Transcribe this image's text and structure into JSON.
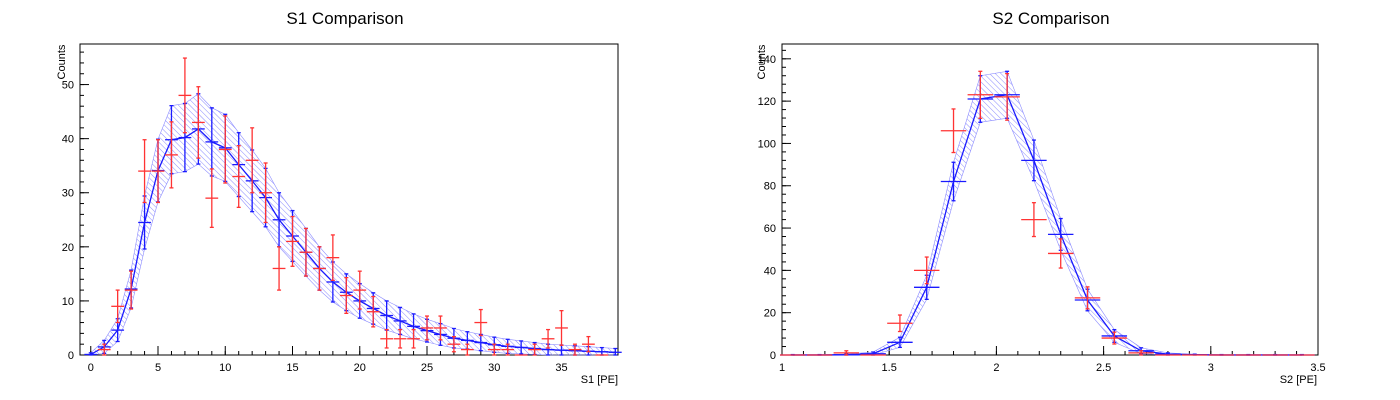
{
  "colors": {
    "data": "#ff3333",
    "model": "#1a1aff",
    "band": "#8c8cff",
    "frame": "#000000"
  },
  "chart_data": [
    {
      "type": "line",
      "title": "S1 Comparison",
      "xlabel": "S1 [PE]",
      "ylabel": "Counts",
      "xlim": [
        -0.8,
        39.2
      ],
      "ylim": [
        0,
        57.5
      ],
      "xticks": [
        0,
        5,
        10,
        15,
        20,
        25,
        30,
        35
      ],
      "yticks": [
        0,
        10,
        20,
        30,
        40,
        50
      ],
      "grid": false,
      "series": [
        {
          "role": "data",
          "x": [
            1,
            2,
            3,
            4,
            5,
            6,
            7,
            8,
            9,
            10,
            11,
            12,
            13,
            14,
            15,
            16,
            17,
            18,
            19,
            20,
            21,
            22,
            23,
            24,
            25,
            26,
            27,
            28,
            29,
            30,
            31,
            32,
            33,
            34,
            35,
            36,
            37,
            38
          ],
          "y": [
            1,
            9,
            12,
            34,
            34,
            37,
            48,
            43,
            29,
            38,
            33,
            36,
            30,
            16,
            21,
            19,
            16,
            18,
            11,
            12,
            8,
            3,
            3,
            3,
            5,
            5,
            2,
            1,
            6,
            1,
            1,
            0,
            1,
            3,
            5,
            1,
            2,
            0
          ],
          "err": [
            1,
            3,
            3.5,
            5.8,
            5.8,
            6.1,
            6.9,
            6.6,
            5.4,
            6.2,
            5.7,
            6,
            5.5,
            4,
            4.6,
            4.4,
            4,
            4.2,
            3.3,
            3.5,
            2.8,
            1.7,
            1.7,
            1.7,
            2.2,
            2.2,
            1.4,
            1,
            2.4,
            1,
            1,
            0,
            1,
            1.7,
            3.2,
            1,
            1.4,
            0
          ]
        },
        {
          "role": "model",
          "x": [
            0,
            1,
            2,
            3,
            4,
            5,
            6,
            7,
            8,
            9,
            10,
            11,
            12,
            13,
            14,
            15,
            16,
            17,
            18,
            19,
            20,
            21,
            22,
            23,
            24,
            25,
            26,
            27,
            28,
            29,
            30,
            31,
            32,
            33,
            34,
            35,
            36,
            37,
            38,
            39
          ],
          "y": [
            0.1,
            1.5,
            4.6,
            12.2,
            24.5,
            34.1,
            39.8,
            40.2,
            41.8,
            39.4,
            38.3,
            35.2,
            32.2,
            29.1,
            25,
            22,
            19,
            16,
            13.5,
            11.6,
            10,
            8.6,
            7.3,
            6.3,
            5.3,
            4.5,
            3.8,
            3.1,
            2.7,
            2.3,
            1.9,
            1.6,
            1.4,
            1.2,
            1,
            0.9,
            0.8,
            0.7,
            0.6,
            0.5
          ],
          "err": [
            0.3,
            1.2,
            2.1,
            3.5,
            4.9,
            5.8,
            6.3,
            6.3,
            6.5,
            6.3,
            6.2,
            5.9,
            5.7,
            5.4,
            5,
            4.7,
            4.4,
            4,
            3.7,
            3.4,
            3.2,
            2.9,
            2.7,
            2.5,
            2.3,
            2.1,
            2,
            1.8,
            1.6,
            1.5,
            1.4,
            1.3,
            1.2,
            1.1,
            1,
            0.95,
            0.9,
            0.84,
            0.77,
            0.7
          ]
        }
      ]
    },
    {
      "type": "line",
      "title": "S2 Comparison",
      "xlabel": "S2 [PE]",
      "ylabel": "Counts",
      "xlim": [
        1,
        3.5
      ],
      "ylim": [
        0,
        147
      ],
      "xticks": [
        1,
        1.5,
        2,
        2.5,
        3,
        3.5
      ],
      "yticks": [
        0,
        20,
        40,
        60,
        80,
        100,
        120,
        140
      ],
      "grid": false,
      "series": [
        {
          "role": "data",
          "x": [
            1.05,
            1.175,
            1.3,
            1.425,
            1.55,
            1.675,
            1.8,
            1.925,
            2.05,
            2.175,
            2.3,
            2.425,
            2.55,
            2.675,
            2.8,
            2.925,
            3.05,
            3.175,
            3.3,
            3.425
          ],
          "y": [
            0,
            0,
            1,
            0,
            15,
            40,
            106,
            123,
            122,
            64,
            48,
            27,
            8,
            1,
            0,
            0,
            0,
            0,
            0,
            0
          ],
          "err": [
            0,
            0,
            1,
            0,
            3.9,
            6.3,
            10.3,
            11.1,
            11,
            8,
            6.9,
            5.2,
            2.8,
            1,
            0,
            0,
            0,
            0,
            0,
            0
          ]
        },
        {
          "role": "model",
          "x": [
            1.05,
            1.175,
            1.3,
            1.425,
            1.55,
            1.675,
            1.8,
            1.925,
            2.05,
            2.175,
            2.3,
            2.425,
            2.55,
            2.675,
            2.8,
            2.925,
            3.05,
            3.175,
            3.3,
            3.425
          ],
          "y": [
            0,
            0,
            0.1,
            0.6,
            6,
            32,
            82,
            121,
            123,
            92,
            57,
            26,
            9,
            2,
            0.4,
            0.1,
            0,
            0,
            0,
            0
          ],
          "err": [
            0.2,
            0.2,
            0.3,
            0.8,
            2.4,
            5.7,
            9.1,
            11,
            11.1,
            9.6,
            7.5,
            5.1,
            3,
            1.4,
            0.6,
            0.3,
            0.2,
            0.2,
            0.2,
            0.2
          ]
        }
      ]
    }
  ]
}
